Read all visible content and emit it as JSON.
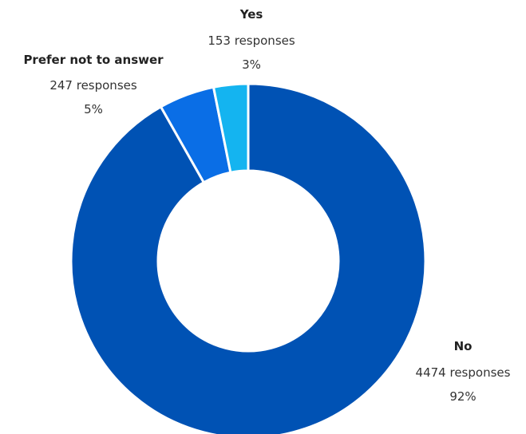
{
  "chart_data": {
    "type": "pie",
    "title": "",
    "slices": [
      {
        "label": "No",
        "count_text": "4474 responses",
        "percent_text": "92%",
        "value": 4474,
        "color": "#0052b4"
      },
      {
        "label": "Prefer not to answer",
        "count_text": "247 responses",
        "percent_text": "5%",
        "value": 247,
        "color": "#0a6ee6"
      },
      {
        "label": "Yes",
        "count_text": "153 responses",
        "percent_text": "3%",
        "value": 153,
        "color": "#14b4f0"
      }
    ],
    "legend": "none",
    "start_angle_deg": 0,
    "direction": "clockwise"
  }
}
